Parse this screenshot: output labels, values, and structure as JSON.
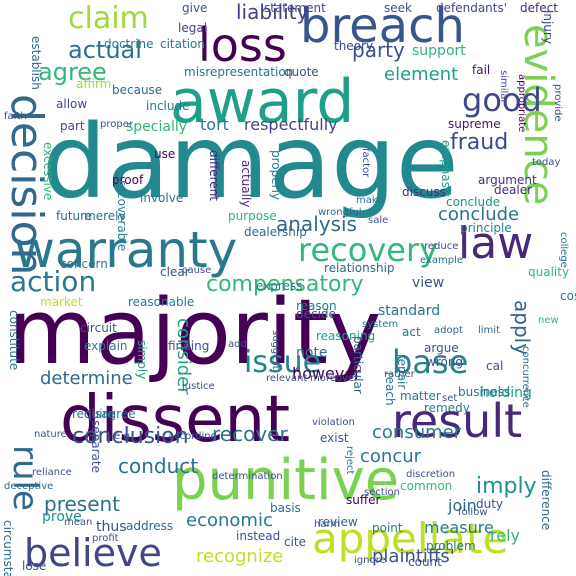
{
  "words": [
    {
      "text": "damage",
      "color": "#23898e"
    },
    {
      "text": "majority",
      "color": "#440154"
    },
    {
      "text": "punitive",
      "color": "#7ad151"
    },
    {
      "text": "dissent",
      "color": "#440154"
    },
    {
      "text": "award",
      "color": "#1f9e89"
    },
    {
      "text": "breach",
      "color": "#39568c"
    },
    {
      "text": "loss",
      "color": "#440154"
    },
    {
      "text": "warranty",
      "color": "#2a788e"
    },
    {
      "text": "decision",
      "color": "#31688e"
    },
    {
      "text": "evidence",
      "color": "#7ad151"
    },
    {
      "text": "result",
      "color": "#482878"
    },
    {
      "text": "appellate",
      "color": "#bddf26"
    },
    {
      "text": "believe",
      "color": "#404688"
    },
    {
      "text": "law",
      "color": "#482878"
    },
    {
      "text": "recovery",
      "color": "#35b779"
    },
    {
      "text": "issue",
      "color": "#26828e"
    },
    {
      "text": "action",
      "color": "#2a788e"
    },
    {
      "text": "claim",
      "color": "#a0da39"
    },
    {
      "text": "rule",
      "color": "#31688e"
    },
    {
      "text": "good",
      "color": "#3e4989"
    },
    {
      "text": "base",
      "color": "#26828e"
    },
    {
      "text": "compensatory",
      "color": "#35b779"
    },
    {
      "text": "conclusion",
      "color": "#3b528b"
    },
    {
      "text": "present",
      "color": "#2c728e"
    },
    {
      "text": "recover",
      "color": "#2c728e"
    },
    {
      "text": "economic",
      "color": "#2a788e"
    },
    {
      "text": "plaintiffs'",
      "color": "#3b528b"
    },
    {
      "text": "recognize",
      "color": "#bddf26"
    },
    {
      "text": "conduct",
      "color": "#2c728e"
    },
    {
      "text": "consider",
      "color": "#1fa187"
    },
    {
      "text": "apply",
      "color": "#31688e"
    },
    {
      "text": "imply",
      "color": "#21918c"
    },
    {
      "text": "agree",
      "color": "#35b779"
    },
    {
      "text": "actual",
      "color": "#2c728e"
    },
    {
      "text": "fraud",
      "color": "#3e4989"
    },
    {
      "text": "analysis",
      "color": "#31688e"
    },
    {
      "text": "determine",
      "color": "#31688e"
    },
    {
      "text": "conclude",
      "color": "#2c728e"
    },
    {
      "text": "party",
      "color": "#3b528b"
    },
    {
      "text": "liability",
      "color": "#424086"
    },
    {
      "text": "element",
      "color": "#1f9e89"
    },
    {
      "text": "consumer",
      "color": "#2a788e"
    },
    {
      "text": "concur",
      "color": "#2a788e"
    },
    {
      "text": "respectfully",
      "color": "#404688"
    },
    {
      "text": "tort",
      "color": "#2a788e"
    },
    {
      "text": "however",
      "color": "#440154"
    },
    {
      "text": "specially",
      "color": "#2fb47c"
    },
    {
      "text": "support",
      "color": "#2fb47c"
    },
    {
      "text": "join",
      "color": "#31688e"
    },
    {
      "text": "measure",
      "color": "#2a788e"
    },
    {
      "text": "view",
      "color": "#3b528b"
    },
    {
      "text": "standard",
      "color": "#2c728e"
    },
    {
      "text": "rely",
      "color": "#35b779"
    },
    {
      "text": "note",
      "color": "#2c728e"
    },
    {
      "text": "prove",
      "color": "#21918c"
    },
    {
      "text": "thus",
      "color": "#3b528b"
    },
    {
      "text": "holding",
      "color": "#1f9e89"
    },
    {
      "text": "express",
      "color": "#2a788e"
    },
    {
      "text": "argument",
      "color": "#472d7b"
    },
    {
      "text": "conclude",
      "color": "#21918c"
    },
    {
      "text": "reason",
      "color": "#2a788e"
    },
    {
      "text": "basis",
      "color": "#2c728e"
    },
    {
      "text": "remedy",
      "color": "#2a788e"
    },
    {
      "text": "require",
      "color": "#2a788e"
    },
    {
      "text": "review",
      "color": "#31688e"
    },
    {
      "text": "suffer",
      "color": "#440154"
    },
    {
      "text": "cost",
      "color": "#2c728e"
    },
    {
      "text": "point",
      "color": "#2a788e"
    },
    {
      "text": "address",
      "color": "#31688e"
    },
    {
      "text": "quality",
      "color": "#35b779"
    },
    {
      "text": "supreme",
      "color": "#481467"
    },
    {
      "text": "principle",
      "color": "#26828e"
    },
    {
      "text": "dealer",
      "color": "#472d7b"
    },
    {
      "text": "fail",
      "color": "#471063"
    },
    {
      "text": "theory",
      "color": "#404688"
    },
    {
      "text": "give",
      "color": "#3b528b"
    },
    {
      "text": "statement",
      "color": "#404688"
    },
    {
      "text": "seek",
      "color": "#3b528b"
    },
    {
      "text": "defendants'",
      "color": "#404688"
    },
    {
      "text": "defect",
      "color": "#482878"
    },
    {
      "text": "injury",
      "color": "#404688"
    },
    {
      "text": "legal",
      "color": "#404688"
    },
    {
      "text": "doctrine",
      "color": "#2a788e"
    },
    {
      "text": "citation",
      "color": "#2a788e"
    },
    {
      "text": "establish",
      "color": "#31688e"
    },
    {
      "text": "allow",
      "color": "#404688"
    },
    {
      "text": "misrepresentation",
      "color": "#2c728e"
    },
    {
      "text": "quote",
      "color": "#3b528b"
    },
    {
      "text": "similar",
      "color": "#3b528b"
    },
    {
      "text": "appropriate",
      "color": "#440154"
    },
    {
      "text": "because",
      "color": "#31688e"
    },
    {
      "text": "include",
      "color": "#2a788e"
    },
    {
      "text": "affirm",
      "color": "#9fda3a"
    },
    {
      "text": "provide",
      "color": "#3b528b"
    },
    {
      "text": "part",
      "color": "#3e4989"
    },
    {
      "text": "proper",
      "color": "#3b528b"
    },
    {
      "text": "faith",
      "color": "#3b528b"
    },
    {
      "text": "use",
      "color": "#440154"
    },
    {
      "text": "excessive",
      "color": "#2fb47c"
    },
    {
      "text": "proof",
      "color": "#440154"
    },
    {
      "text": "different",
      "color": "#482878"
    },
    {
      "text": "actually",
      "color": "#482878"
    },
    {
      "text": "properly",
      "color": "#2a788e"
    },
    {
      "text": "factor",
      "color": "#3b528b"
    },
    {
      "text": "emphasis",
      "color": "#1f9e89"
    },
    {
      "text": "today",
      "color": "#3b528b"
    },
    {
      "text": "discuss",
      "color": "#472d7b"
    },
    {
      "text": "make",
      "color": "#2a788e"
    },
    {
      "text": "recoverable",
      "color": "#26828e"
    },
    {
      "text": "involve",
      "color": "#2c728e"
    },
    {
      "text": "future",
      "color": "#31688e"
    },
    {
      "text": "merely",
      "color": "#2c728e"
    },
    {
      "text": "purpose",
      "color": "#2fb47c"
    },
    {
      "text": "dealership",
      "color": "#31688e"
    },
    {
      "text": "wrongful",
      "color": "#31688e"
    },
    {
      "text": "sale",
      "color": "#3b528b"
    },
    {
      "text": "college",
      "color": "#2c728e"
    },
    {
      "text": "reduce",
      "color": "#404688"
    },
    {
      "text": "example",
      "color": "#2c728e"
    },
    {
      "text": "concern",
      "color": "#2a788e"
    },
    {
      "text": "clear",
      "color": "#3b528b"
    },
    {
      "text": "cause",
      "color": "#3b528b"
    },
    {
      "text": "relationship",
      "color": "#31688e"
    },
    {
      "text": "market",
      "color": "#bddf26"
    },
    {
      "text": "reasonable",
      "color": "#2a788e"
    },
    {
      "text": "decide",
      "color": "#3b528b"
    },
    {
      "text": "system",
      "color": "#2a788e"
    },
    {
      "text": "act",
      "color": "#2c728e"
    },
    {
      "text": "adopt",
      "color": "#31688e"
    },
    {
      "text": "limit",
      "color": "#31688e"
    },
    {
      "text": "new",
      "color": "#35b779"
    },
    {
      "text": "constitute",
      "color": "#2c728e"
    },
    {
      "text": "circuit",
      "color": "#3b528b"
    },
    {
      "text": "explain",
      "color": "#2a788e"
    },
    {
      "text": "simply",
      "color": "#1f9e89"
    },
    {
      "text": "finding",
      "color": "#3b528b"
    },
    {
      "text": "add",
      "color": "#3b528b"
    },
    {
      "text": "suggest",
      "color": "#3b528b"
    },
    {
      "text": "reasoning",
      "color": "#1f9e89"
    },
    {
      "text": "argue",
      "color": "#3b528b"
    },
    {
      "text": "wrong",
      "color": "#3b528b"
    },
    {
      "text": "matter",
      "color": "#2a788e"
    },
    {
      "text": "repair",
      "color": "#2a788e"
    },
    {
      "text": "reach",
      "color": "#2c728e"
    },
    {
      "text": "particular",
      "color": "#31688e"
    },
    {
      "text": "cal",
      "color": "#3b528b"
    },
    {
      "text": "concurrence",
      "color": "#2c728e"
    },
    {
      "text": "relevant",
      "color": "#3b528b"
    },
    {
      "text": "moreover",
      "color": "#3b528b"
    },
    {
      "text": "rather",
      "color": "#3b528b"
    },
    {
      "text": "justice",
      "color": "#3b528b"
    },
    {
      "text": "business",
      "color": "#2c728e"
    },
    {
      "text": "set",
      "color": "#3b528b"
    },
    {
      "text": "disagree",
      "color": "#2c728e"
    },
    {
      "text": "violation",
      "color": "#3b528b"
    },
    {
      "text": "nature",
      "color": "#3b528b"
    },
    {
      "text": "separate",
      "color": "#3b528b"
    },
    {
      "text": "e.g.",
      "color": "#3b528b"
    },
    {
      "text": "according",
      "color": "#3b528b"
    },
    {
      "text": "exist",
      "color": "#3b528b"
    },
    {
      "text": "reject",
      "color": "#2a788e"
    },
    {
      "text": "deceptive",
      "color": "#31688e"
    },
    {
      "text": "reliance",
      "color": "#3b528b"
    },
    {
      "text": "determination",
      "color": "#3b528b"
    },
    {
      "text": "discretion",
      "color": "#3b528b"
    },
    {
      "text": "common",
      "color": "#35b779"
    },
    {
      "text": "difference",
      "color": "#31688e"
    },
    {
      "text": "circumstance",
      "color": "#31688e"
    },
    {
      "text": "section",
      "color": "#3b528b"
    },
    {
      "text": "duty",
      "color": "#3b528b"
    },
    {
      "text": "follow",
      "color": "#3b528b"
    },
    {
      "text": "problem",
      "color": "#2c728e"
    },
    {
      "text": "mean",
      "color": "#3b528b"
    },
    {
      "text": "profit",
      "color": "#3b528b"
    },
    {
      "text": "harm",
      "color": "#3b528b"
    },
    {
      "text": "cite",
      "color": "#3b528b"
    },
    {
      "text": "instead",
      "color": "#3b528b"
    },
    {
      "text": "lose",
      "color": "#3b528b"
    },
    {
      "text": "ignore",
      "color": "#3b528b"
    },
    {
      "text": "count",
      "color": "#3b528b"
    }
  ]
}
